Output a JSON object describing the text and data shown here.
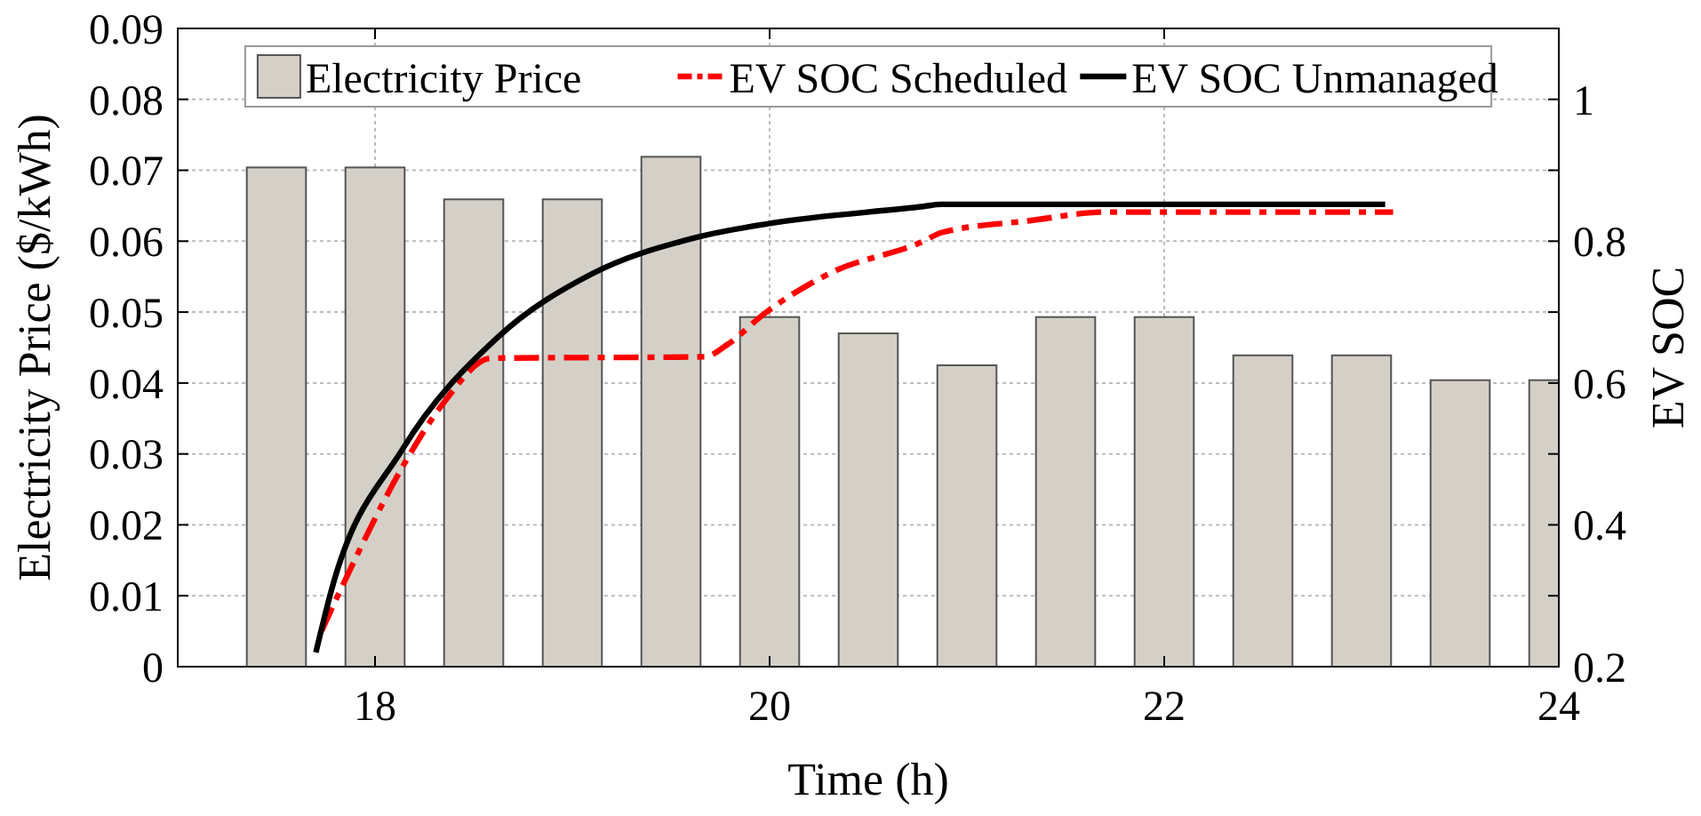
{
  "chart_data": {
    "type": "bar",
    "xlabel": "Time (h)",
    "ylabel": "Electricity Price ($/kWh)",
    "y2label": "EV SOC",
    "xlim": [
      17,
      24
    ],
    "xticks": [
      18,
      20,
      22,
      24
    ],
    "ylim": [
      0,
      0.09
    ],
    "yticks": [
      0,
      0.01,
      0.02,
      0.03,
      0.04,
      0.05,
      0.06,
      0.07,
      0.08,
      0.09
    ],
    "y2lim": [
      0.2,
      1.1
    ],
    "y2ticks": [
      0.2,
      {
        "value": 0.3,
        "label": null
      },
      0.4,
      {
        "value": 0.5,
        "label": null
      },
      0.6,
      {
        "value": 0.7,
        "label": null
      },
      0.8,
      {
        "value": 0.9,
        "label": null
      },
      1
    ],
    "grid": true,
    "legend": "top",
    "series": [
      {
        "name": "Electricity Price",
        "color": "#d4d0c8",
        "x": [
          17.5,
          18,
          18.5,
          19,
          19.5,
          20,
          20.5,
          21,
          21.5,
          22,
          22.5,
          23,
          23.5,
          24
        ],
        "values": [
          0.0704,
          0.0704,
          0.0659,
          0.0659,
          0.0719,
          0.0493,
          0.047,
          0.0425,
          0.0493,
          0.0493,
          0.0439,
          0.0439,
          0.0404,
          0.0404
        ]
      },
      {
        "name": "EV SOC Scheduled",
        "type": "line",
        "axis": "y2",
        "color": "#ff0000",
        "line_style": "dashed",
        "x": [
          17.73,
          17.84,
          18.14,
          18.35,
          18.59,
          19.67,
          19.79,
          19.97,
          20.3,
          20.78,
          20.87,
          21.32,
          21.7,
          23.16
        ],
        "values": [
          0.251,
          0.317,
          0.482,
          0.573,
          0.635,
          0.637,
          0.655,
          0.697,
          0.754,
          0.8,
          0.812,
          0.829,
          0.841,
          0.841
        ]
      },
      {
        "name": "EV SOC Unmanaged",
        "type": "line",
        "axis": "y2",
        "color": "#000000",
        "line_style": "solid",
        "x": [
          17.7,
          17.78,
          18.14,
          18.62,
          19.1,
          19.61,
          20.0,
          20.78,
          20.87,
          23.12
        ],
        "values": [
          0.22,
          0.309,
          0.507,
          0.664,
          0.754,
          0.804,
          0.825,
          0.849,
          0.852,
          0.852
        ]
      }
    ]
  }
}
